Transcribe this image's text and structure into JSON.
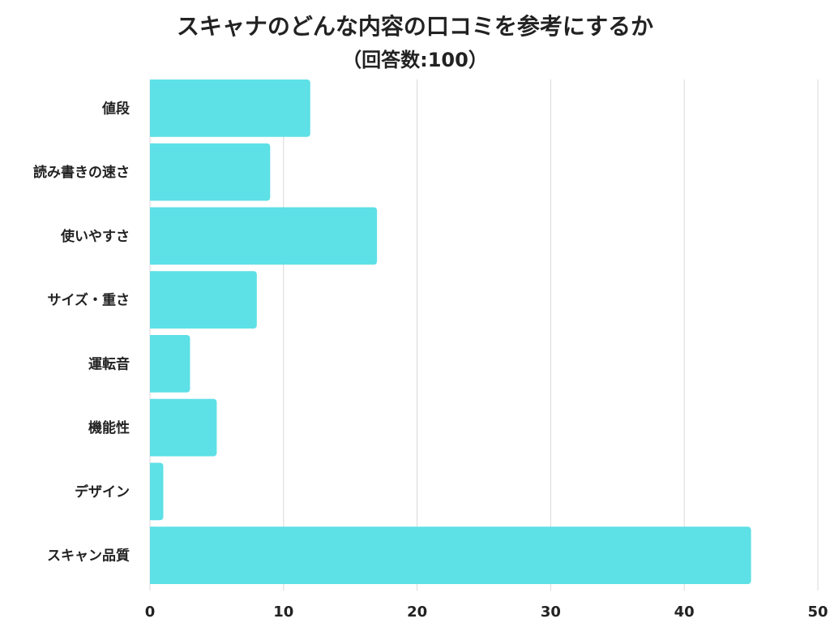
{
  "colors": {
    "bar": "#5de0e6",
    "grid": "#d9d9d9",
    "text": "#222222"
  },
  "chart_data": {
    "type": "bar",
    "orientation": "horizontal",
    "title": "スキャナのどんな内容の口コミを参考にするか",
    "subtitle": "（回答数:100）",
    "categories": [
      "値段",
      "読み書きの速さ",
      "使いやすさ",
      "サイズ・重さ",
      "運転音",
      "機能性",
      "デザイン",
      "スキャン品質"
    ],
    "values": [
      12,
      9,
      17,
      8,
      3,
      5,
      1,
      45
    ],
    "xlim": [
      0,
      50
    ],
    "xticks": [
      0,
      10,
      20,
      30,
      40,
      50
    ],
    "grid": true,
    "legend": "none"
  }
}
